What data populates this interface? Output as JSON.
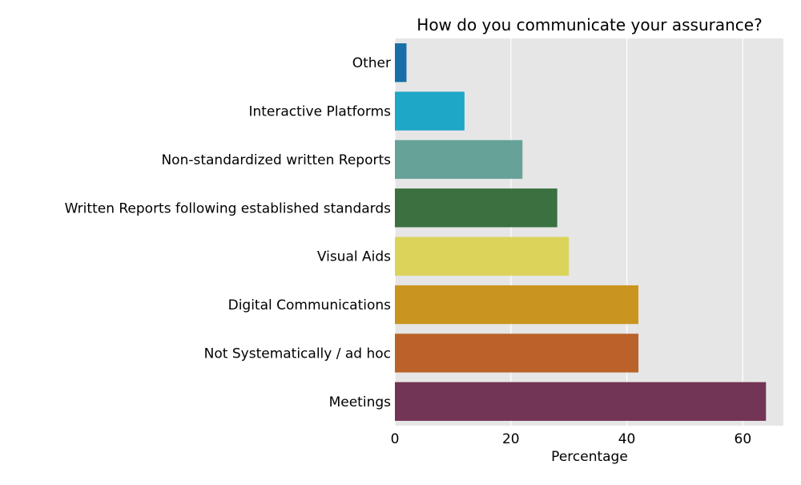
{
  "chart_data": {
    "type": "bar",
    "orientation": "horizontal",
    "title": "How do you communicate your assurance?",
    "xlabel": "Percentage",
    "ylabel": "",
    "xlim": [
      0,
      67
    ],
    "x_ticks": [
      0,
      20,
      40,
      60
    ],
    "grid": "vertical",
    "categories": [
      "Other",
      "Interactive Platforms",
      "Non-standardized written Reports",
      "Written Reports following established standards",
      "Visual Aids",
      "Digital Communications",
      "Not Systematically / ad hoc",
      "Meetings"
    ],
    "values": [
      2,
      12,
      22,
      28,
      30,
      42,
      42,
      64
    ],
    "colors": [
      "#1a6ea8",
      "#1ea7c7",
      "#67a298",
      "#3b7040",
      "#dbd35a",
      "#c9951f",
      "#bb622a",
      "#733555"
    ],
    "background": "#e6e6e6"
  }
}
